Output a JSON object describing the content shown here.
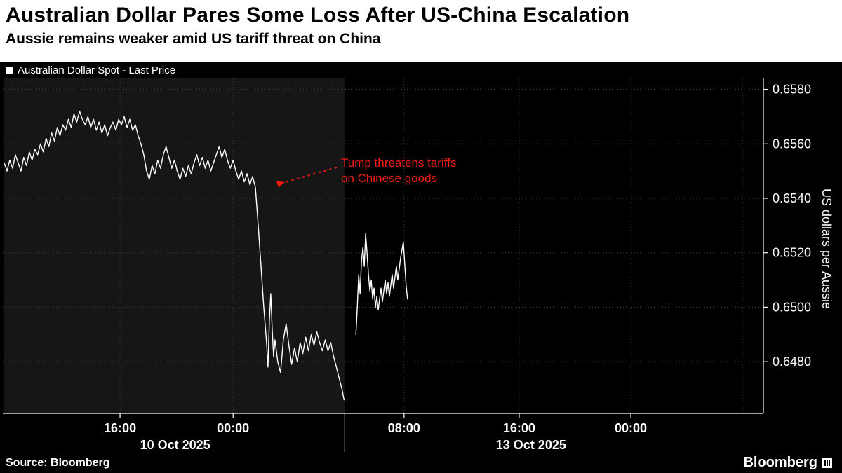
{
  "header": {
    "title": "Australian Dollar Pares Some Loss After US-China Escalation",
    "subtitle": "Aussie remains weaker amid US tariff threat on China"
  },
  "legend": {
    "label": "Australian Dollar Spot - Last Price"
  },
  "annotation": {
    "line1": "Tump threatens tariffs",
    "line2": "on Chinese goods",
    "color": "#f51d12"
  },
  "footer": {
    "source": "Source: Bloomberg",
    "logo": "Bloomberg"
  },
  "chart_data": {
    "type": "line",
    "title": "Australian Dollar Spot - Last Price",
    "ylabel": "US dollars per Aussie",
    "xlabel": "",
    "grid": true,
    "legend_position": "top-left",
    "ylim": [
      0.6461,
      0.6584
    ],
    "xlim": [
      0,
      1090
    ],
    "y_ticks": [
      {
        "v": 0.658,
        "label": "0.6580"
      },
      {
        "v": 0.656,
        "label": "0.6560"
      },
      {
        "v": 0.654,
        "label": "0.6540"
      },
      {
        "v": 0.652,
        "label": "0.6520"
      },
      {
        "v": 0.65,
        "label": "0.6500"
      },
      {
        "v": 0.648,
        "label": "0.6480"
      }
    ],
    "x_ticks": [
      {
        "x": 168,
        "label": "16:00"
      },
      {
        "x": 330,
        "label": "00:00"
      },
      {
        "x": 575,
        "label": "08:00"
      },
      {
        "x": 740,
        "label": "16:00"
      },
      {
        "x": 900,
        "label": "00:00"
      },
      {
        "x": 1060,
        "label": ""
      }
    ],
    "date_labels": [
      {
        "x": 247,
        "label": "10 Oct 2025"
      },
      {
        "x": 757,
        "label": "13 Oct 2025"
      }
    ],
    "separators": [
      490
    ],
    "session_shading": {
      "x0": 2,
      "x1": 490,
      "color": "#161616"
    },
    "annotation_arrow": {
      "from_xy": [
        480,
        127
      ],
      "to_xy": [
        406,
        148
      ]
    },
    "series": [
      {
        "name": "Australian Dollar Spot - Last Price",
        "color": "#ffffff",
        "segments": [
          [
            [
              2,
              0.6553
            ],
            [
              6,
              0.655
            ],
            [
              10,
              0.6554
            ],
            [
              14,
              0.6551
            ],
            [
              18,
              0.6556
            ],
            [
              22,
              0.6553
            ],
            [
              26,
              0.655
            ],
            [
              30,
              0.6555
            ],
            [
              34,
              0.6552
            ],
            [
              38,
              0.6557
            ],
            [
              42,
              0.6554
            ],
            [
              46,
              0.6558
            ],
            [
              50,
              0.6556
            ],
            [
              54,
              0.656
            ],
            [
              58,
              0.6557
            ],
            [
              62,
              0.6562
            ],
            [
              66,
              0.6559
            ],
            [
              70,
              0.6564
            ],
            [
              74,
              0.6561
            ],
            [
              78,
              0.6566
            ],
            [
              82,
              0.6563
            ],
            [
              86,
              0.6567
            ],
            [
              90,
              0.6565
            ],
            [
              94,
              0.6569
            ],
            [
              98,
              0.6566
            ],
            [
              102,
              0.6571
            ],
            [
              106,
              0.6568
            ],
            [
              110,
              0.6572
            ],
            [
              114,
              0.6569
            ],
            [
              118,
              0.6567
            ],
            [
              122,
              0.657
            ],
            [
              126,
              0.6566
            ],
            [
              130,
              0.6569
            ],
            [
              134,
              0.6565
            ],
            [
              138,
              0.6568
            ],
            [
              142,
              0.6564
            ],
            [
              146,
              0.6567
            ],
            [
              150,
              0.6563
            ],
            [
              154,
              0.6566
            ],
            [
              158,
              0.6568
            ],
            [
              162,
              0.6565
            ],
            [
              166,
              0.6569
            ],
            [
              170,
              0.6567
            ],
            [
              174,
              0.657
            ],
            [
              178,
              0.6566
            ],
            [
              182,
              0.6569
            ],
            [
              186,
              0.6565
            ],
            [
              190,
              0.6567
            ],
            [
              194,
              0.6563
            ],
            [
              198,
              0.656
            ],
            [
              202,
              0.6556
            ],
            [
              206,
              0.655
            ],
            [
              210,
              0.6547
            ],
            [
              214,
              0.6552
            ],
            [
              218,
              0.6549
            ],
            [
              222,
              0.6554
            ],
            [
              226,
              0.6551
            ],
            [
              230,
              0.6556
            ],
            [
              234,
              0.6559
            ],
            [
              238,
              0.6555
            ],
            [
              242,
              0.6551
            ],
            [
              246,
              0.6554
            ],
            [
              250,
              0.655
            ],
            [
              254,
              0.6547
            ],
            [
              258,
              0.6551
            ],
            [
              262,
              0.6548
            ],
            [
              266,
              0.6552
            ],
            [
              270,
              0.6549
            ],
            [
              274,
              0.6553
            ],
            [
              278,
              0.6556
            ],
            [
              282,
              0.6552
            ],
            [
              286,
              0.6555
            ],
            [
              290,
              0.6551
            ],
            [
              294,
              0.6554
            ],
            [
              298,
              0.655
            ],
            [
              302,
              0.6553
            ],
            [
              306,
              0.6556
            ],
            [
              310,
              0.6559
            ],
            [
              314,
              0.6555
            ],
            [
              318,
              0.6558
            ],
            [
              322,
              0.6554
            ],
            [
              326,
              0.6551
            ],
            [
              330,
              0.6554
            ],
            [
              334,
              0.655
            ],
            [
              338,
              0.6547
            ],
            [
              342,
              0.655
            ],
            [
              346,
              0.6546
            ],
            [
              350,
              0.6549
            ],
            [
              354,
              0.6545
            ],
            [
              358,
              0.6548
            ],
            [
              362,
              0.6544
            ],
            [
              366,
              0.653
            ],
            [
              370,
              0.6515
            ],
            [
              374,
              0.65
            ],
            [
              378,
              0.6487
            ],
            [
              380,
              0.6478
            ],
            [
              382,
              0.6495
            ],
            [
              384,
              0.6505
            ],
            [
              386,
              0.6492
            ],
            [
              388,
              0.6482
            ],
            [
              390,
              0.6488
            ],
            [
              394,
              0.648
            ],
            [
              398,
              0.6476
            ],
            [
              402,
              0.6488
            ],
            [
              406,
              0.6494
            ],
            [
              410,
              0.6486
            ],
            [
              414,
              0.6479
            ],
            [
              418,
              0.6485
            ],
            [
              422,
              0.648
            ],
            [
              426,
              0.6487
            ],
            [
              430,
              0.6483
            ],
            [
              434,
              0.6489
            ],
            [
              438,
              0.6484
            ],
            [
              442,
              0.649
            ],
            [
              446,
              0.6486
            ],
            [
              450,
              0.6491
            ],
            [
              454,
              0.6487
            ],
            [
              458,
              0.6484
            ],
            [
              462,
              0.6488
            ],
            [
              466,
              0.6484
            ],
            [
              470,
              0.6487
            ],
            [
              474,
              0.6482
            ],
            [
              478,
              0.6478
            ],
            [
              482,
              0.6474
            ],
            [
              486,
              0.647
            ],
            [
              489,
              0.6466
            ]
          ],
          [
            [
              506,
              0.649
            ],
            [
              508,
              0.65
            ],
            [
              510,
              0.6512
            ],
            [
              512,
              0.6505
            ],
            [
              514,
              0.6517
            ],
            [
              516,
              0.6522
            ],
            [
              518,
              0.6515
            ],
            [
              520,
              0.6527
            ],
            [
              522,
              0.652
            ],
            [
              524,
              0.6512
            ],
            [
              526,
              0.6506
            ],
            [
              528,
              0.651
            ],
            [
              530,
              0.6503
            ],
            [
              532,
              0.6507
            ],
            [
              534,
              0.65
            ],
            [
              536,
              0.6504
            ],
            [
              538,
              0.6499
            ],
            [
              540,
              0.6503
            ],
            [
              542,
              0.6507
            ],
            [
              544,
              0.6502
            ],
            [
              546,
              0.6506
            ],
            [
              548,
              0.651
            ],
            [
              550,
              0.6505
            ],
            [
              552,
              0.6509
            ],
            [
              554,
              0.6504
            ],
            [
              556,
              0.6508
            ],
            [
              558,
              0.6512
            ],
            [
              560,
              0.6507
            ],
            [
              562,
              0.6511
            ],
            [
              564,
              0.6515
            ],
            [
              566,
              0.651
            ],
            [
              568,
              0.6514
            ],
            [
              570,
              0.6518
            ],
            [
              572,
              0.6521
            ],
            [
              574,
              0.6524
            ],
            [
              576,
              0.6516
            ],
            [
              578,
              0.6508
            ],
            [
              580,
              0.6503
            ]
          ]
        ]
      }
    ]
  }
}
